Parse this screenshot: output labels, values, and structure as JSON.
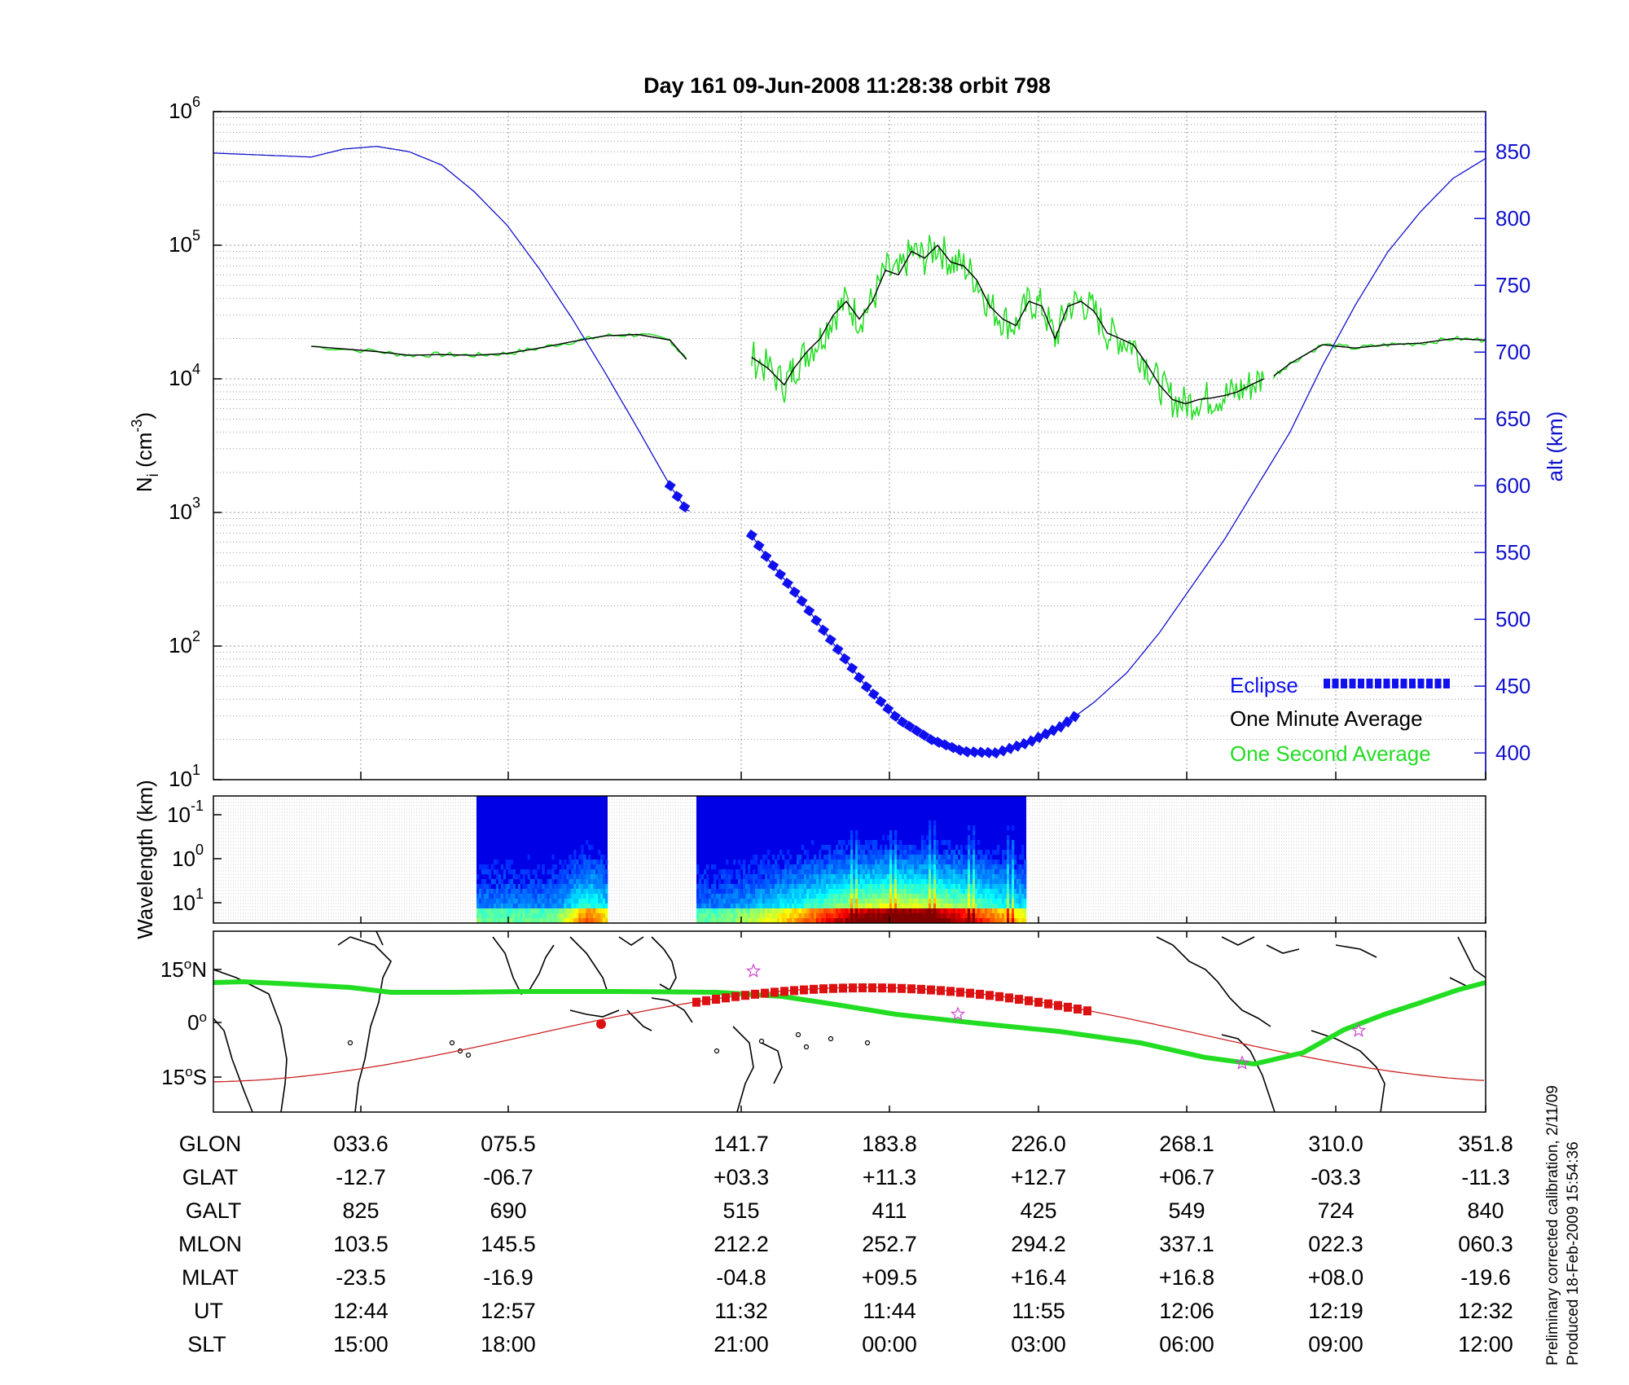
{
  "chart_data": [
    {
      "type": "line",
      "title": "Day 161  09-Jun-2008 11:28:38   orbit 798",
      "ylabel": "N_i (cm^-3)",
      "ylabel_main": "N",
      "ylabel_sub": "i",
      "ylabel_unit_a": " (cm",
      "ylabel_unit_sup": "-3",
      "ylabel_unit_b": ")",
      "y_scale": "log",
      "ylim": [
        10,
        1000000
      ],
      "y_ticks": [
        {
          "base": "10",
          "exp": "1",
          "value": 10
        },
        {
          "base": "10",
          "exp": "2",
          "value": 100
        },
        {
          "base": "10",
          "exp": "3",
          "value": 1000
        },
        {
          "base": "10",
          "exp": "4",
          "value": 10000
        },
        {
          "base": "10",
          "exp": "5",
          "value": 100000
        },
        {
          "base": "10",
          "exp": "6",
          "value": 1000000
        }
      ],
      "y2label": "alt (km)",
      "y2lim": [
        380,
        880
      ],
      "y2_ticks": [
        "400",
        "450",
        "500",
        "550",
        "600",
        "650",
        "700",
        "750",
        "800",
        "850"
      ],
      "grid": true,
      "legend_position": "bottom-right",
      "legend": [
        {
          "label": "Eclipse",
          "color": "#1010ee"
        },
        {
          "label": "One Minute Average",
          "color": "#000000"
        },
        {
          "label": "One Second Average",
          "color": "#22dd22"
        }
      ],
      "x_axis_note": "GLON in degrees, wraps at 360 (from ~0 to 360+)",
      "series": [
        {
          "name": "One Minute Average",
          "color": "#000000",
          "segments": [
            {
              "x": [
                0,
                20,
                30,
                40,
                50,
                60,
                70,
                80,
                90,
                100,
                110,
                115
              ],
              "y": [
                17500,
                16000,
                15000,
                15200,
                15000,
                15500,
                17000,
                19000,
                21000,
                21500,
                19500,
                14000
              ]
            },
            {
              "x": [
                135,
                140,
                145,
                148,
                152,
                156,
                160,
                164,
                168,
                172,
                176,
                180,
                184,
                188,
                192,
                196,
                200,
                204,
                208,
                212,
                216,
                220,
                224,
                228,
                232,
                236,
                240,
                244,
                248,
                252,
                256,
                260,
                264,
                268,
                272,
                276,
                280,
                284,
                288,
                292
              ],
              "y": [
                14500,
                12000,
                9000,
                12000,
                16000,
                20000,
                30000,
                38000,
                28000,
                38000,
                65000,
                60000,
                90000,
                80000,
                100000,
                75000,
                70000,
                55000,
                35000,
                28000,
                25000,
                38000,
                35000,
                20000,
                35000,
                38000,
                32000,
                22000,
                20000,
                18000,
                13000,
                9000,
                7000,
                6500,
                7000,
                7200,
                7500,
                8000,
                9000,
                10000
              ]
            },
            {
              "x": [
                295,
                300,
                310,
                320,
                330,
                340,
                350,
                360
              ],
              "y": [
                10500,
                13000,
                18000,
                17000,
                18000,
                18500,
                20000,
                19500
              ]
            }
          ]
        },
        {
          "name": "One Second Average",
          "color": "#22dd22",
          "note": "noisy 1-s samples overlapping the 1-min average"
        },
        {
          "name": "alt (km)",
          "color": "#1010cc",
          "axis": "right",
          "x": [
            0,
            10,
            20,
            30,
            40,
            50,
            60,
            70,
            80,
            90,
            100,
            110,
            115,
            135,
            140,
            150,
            160,
            170,
            180,
            190,
            200,
            210,
            220,
            230,
            240,
            250,
            260,
            270,
            280,
            290,
            300,
            310,
            320,
            330,
            340,
            350,
            360
          ],
          "y": [
            846,
            852,
            854,
            850,
            840,
            820,
            795,
            762,
            725,
            685,
            643,
            600,
            582,
            563,
            545,
            515,
            482,
            450,
            425,
            410,
            401,
            400,
            408,
            420,
            438,
            460,
            490,
            525,
            560,
            600,
            640,
            690,
            735,
            775,
            805,
            830,
            845
          ]
        },
        {
          "name": "Eclipse",
          "color": "#1010ee",
          "note": "thick square markers on altitude curve during eclipse",
          "x_ranges": [
            [
              110,
              116
            ],
            [
              135,
              235
            ]
          ]
        }
      ]
    },
    {
      "type": "heatmap",
      "ylabel": "Wavelength (km)",
      "y_ticks": [
        {
          "base": "10",
          "exp": "-1"
        },
        {
          "base": "10",
          "exp": "0"
        },
        {
          "base": "10",
          "exp": "1"
        }
      ],
      "blocks_glon": [
        [
          73,
          109
        ],
        [
          130,
          236
        ]
      ],
      "colormap": "jet"
    },
    {
      "type": "map",
      "y_ticks": [
        "15ºN",
        "0º",
        "15ºS"
      ],
      "y_ticks_parts": [
        {
          "num": "15",
          "deg": "o",
          "hem": "N"
        },
        {
          "num": "0",
          "deg": "o",
          "hem": ""
        },
        {
          "num": "15",
          "deg": "o",
          "hem": "S"
        }
      ],
      "orbit_track_color": "#cc2222",
      "dip_equator_color": "#22dd22"
    }
  ],
  "table": {
    "row_labels": [
      "GLON",
      "GLAT",
      "GALT",
      "MLON",
      "MLAT",
      "UT",
      "SLT"
    ],
    "columns": [
      {
        "GLON": "033.6",
        "GLAT": "-12.7",
        "GALT": "825",
        "MLON": "103.5",
        "MLAT": "-23.5",
        "UT": "12:44",
        "SLT": "15:00"
      },
      {
        "GLON": "075.5",
        "GLAT": "-06.7",
        "GALT": "690",
        "MLON": "145.5",
        "MLAT": "-16.9",
        "UT": "12:57",
        "SLT": "18:00"
      },
      {
        "GLON": "141.7",
        "GLAT": "+03.3",
        "GALT": "515",
        "MLON": "212.2",
        "MLAT": "-04.8",
        "UT": "11:32",
        "SLT": "21:00"
      },
      {
        "GLON": "183.8",
        "GLAT": "+11.3",
        "GALT": "411",
        "MLON": "252.7",
        "MLAT": "+09.5",
        "UT": "11:44",
        "SLT": "00:00"
      },
      {
        "GLON": "226.0",
        "GLAT": "+12.7",
        "GALT": "425",
        "MLON": "294.2",
        "MLAT": "+16.4",
        "UT": "11:55",
        "SLT": "03:00"
      },
      {
        "GLON": "268.1",
        "GLAT": "+06.7",
        "GALT": "549",
        "MLON": "337.1",
        "MLAT": "+16.8",
        "UT": "12:06",
        "SLT": "06:00"
      },
      {
        "GLON": "310.0",
        "GLAT": "-03.3",
        "GALT": "724",
        "MLON": "022.3",
        "MLAT": "+08.0",
        "UT": "12:19",
        "SLT": "09:00"
      },
      {
        "GLON": "351.8",
        "GLAT": "-11.3",
        "GALT": "840",
        "MLON": "060.3",
        "MLAT": "-19.6",
        "UT": "12:32",
        "SLT": "12:00"
      }
    ]
  },
  "footer": {
    "line1": "Preliminary corrected calibration, 2/11/09",
    "line2": "Produced 18-Feb-2009 15:54:36"
  }
}
